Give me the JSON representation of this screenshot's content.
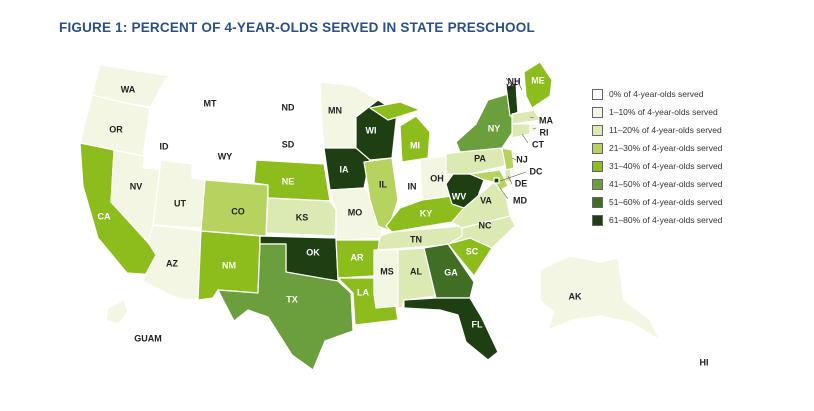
{
  "title": "FIGURE 1: PERCENT OF 4-YEAR-OLDS SERVED IN STATE PRESCHOOL",
  "legend": [
    {
      "label": "0% of 4-year-olds served",
      "color": "#ffffff"
    },
    {
      "label": "1–10% of 4-year-olds served",
      "color": "#f2f6e2"
    },
    {
      "label": "11–20% of 4-year-olds served",
      "color": "#dbe9b2"
    },
    {
      "label": "21–30% of 4-year-olds served",
      "color": "#b5d35e"
    },
    {
      "label": "31–40% of 4-year-olds served",
      "color": "#8cbd1c"
    },
    {
      "label": "41–50% of 4-year-olds served",
      "color": "#6b9e3c"
    },
    {
      "label": "51–60% of 4-year-olds served",
      "color": "#3f6e24"
    },
    {
      "label": "61–80% of 4-year-olds served",
      "color": "#1e3f12"
    }
  ],
  "states": {
    "WA": {
      "label": "WA",
      "bin": 1
    },
    "OR": {
      "label": "OR",
      "bin": 1
    },
    "CA": {
      "label": "CA",
      "bin": 4
    },
    "NV": {
      "label": "NV",
      "bin": 1
    },
    "ID": {
      "label": "ID",
      "bin": 0
    },
    "MT": {
      "label": "MT",
      "bin": 0
    },
    "WY": {
      "label": "WY",
      "bin": 0
    },
    "UT": {
      "label": "UT",
      "bin": 1
    },
    "AZ": {
      "label": "AZ",
      "bin": 1
    },
    "CO": {
      "label": "CO",
      "bin": 3
    },
    "NM": {
      "label": "NM",
      "bin": 4
    },
    "ND": {
      "label": "ND",
      "bin": 0
    },
    "SD": {
      "label": "SD",
      "bin": 0
    },
    "NE": {
      "label": "NE",
      "bin": 4
    },
    "KS": {
      "label": "KS",
      "bin": 2
    },
    "OK": {
      "label": "OK",
      "bin": 7
    },
    "TX": {
      "label": "TX",
      "bin": 5
    },
    "MN": {
      "label": "MN",
      "bin": 1
    },
    "IA": {
      "label": "IA",
      "bin": 7
    },
    "MO": {
      "label": "MO",
      "bin": 1
    },
    "AR": {
      "label": "AR",
      "bin": 4
    },
    "LA": {
      "label": "LA",
      "bin": 4
    },
    "WI": {
      "label": "WI",
      "bin": 7
    },
    "IL": {
      "label": "IL",
      "bin": 3
    },
    "MI": {
      "label": "MI",
      "bin": 4
    },
    "IN": {
      "label": "IN",
      "bin": 0
    },
    "OH": {
      "label": "OH",
      "bin": 1
    },
    "KY": {
      "label": "KY",
      "bin": 4
    },
    "TN": {
      "label": "TN",
      "bin": 2
    },
    "MS": {
      "label": "MS",
      "bin": 1
    },
    "AL": {
      "label": "AL",
      "bin": 2
    },
    "GA": {
      "label": "GA",
      "bin": 6
    },
    "FL": {
      "label": "FL",
      "bin": 7
    },
    "SC": {
      "label": "SC",
      "bin": 4
    },
    "NC": {
      "label": "NC",
      "bin": 2
    },
    "VA": {
      "label": "VA",
      "bin": 2
    },
    "WV": {
      "label": "WV",
      "bin": 7
    },
    "PA": {
      "label": "PA",
      "bin": 2
    },
    "NY": {
      "label": "NY",
      "bin": 5
    },
    "VT": {
      "label": "VT",
      "bin": 7
    },
    "NH": {
      "label": "NH",
      "bin": 0
    },
    "ME": {
      "label": "ME",
      "bin": 4
    },
    "MA": {
      "label": "MA",
      "bin": 2
    },
    "RI": {
      "label": "RI",
      "bin": 1
    },
    "CT": {
      "label": "CT",
      "bin": 2
    },
    "NJ": {
      "label": "NJ",
      "bin": 3
    },
    "DE": {
      "label": "DE",
      "bin": 2
    },
    "MD": {
      "label": "MD",
      "bin": 3
    },
    "DC": {
      "label": "DC",
      "bin": 7
    },
    "AK": {
      "label": "AK",
      "bin": 1
    },
    "HI": {
      "label": "HI",
      "bin": 0
    },
    "GUAM": {
      "label": "GUAM",
      "bin": 1
    }
  }
}
